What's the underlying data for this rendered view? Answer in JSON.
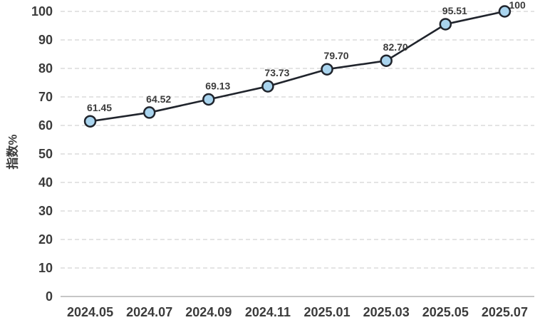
{
  "chart_data": {
    "type": "line",
    "title": "",
    "xlabel": "",
    "ylabel": "指数%",
    "categories": [
      "2024.05",
      "2024.07",
      "2024.09",
      "2024.11",
      "2025.01",
      "2025.03",
      "2025.05",
      "2025.07"
    ],
    "values": [
      61.45,
      64.52,
      69.13,
      73.73,
      79.7,
      82.7,
      95.51,
      100
    ],
    "value_labels": [
      "61.45",
      "64.52",
      "69.13",
      "73.73",
      "79.70",
      "82.70",
      "95.51",
      "100"
    ],
    "ylim": [
      0,
      100
    ],
    "y_ticks": [
      0,
      10,
      20,
      30,
      40,
      50,
      60,
      70,
      80,
      90,
      100
    ],
    "grid": "horizontal-dashed",
    "legend": "none",
    "colors": {
      "line": "#20242c",
      "marker_fill": "#a9d4ee",
      "marker_stroke": "#20242c",
      "gridline": "#dcdcdc",
      "axis_line": "#c6c6c6",
      "tick_label": "#3b3b3b",
      "data_label": "#3b3b3b",
      "background": "#ffffff"
    }
  }
}
